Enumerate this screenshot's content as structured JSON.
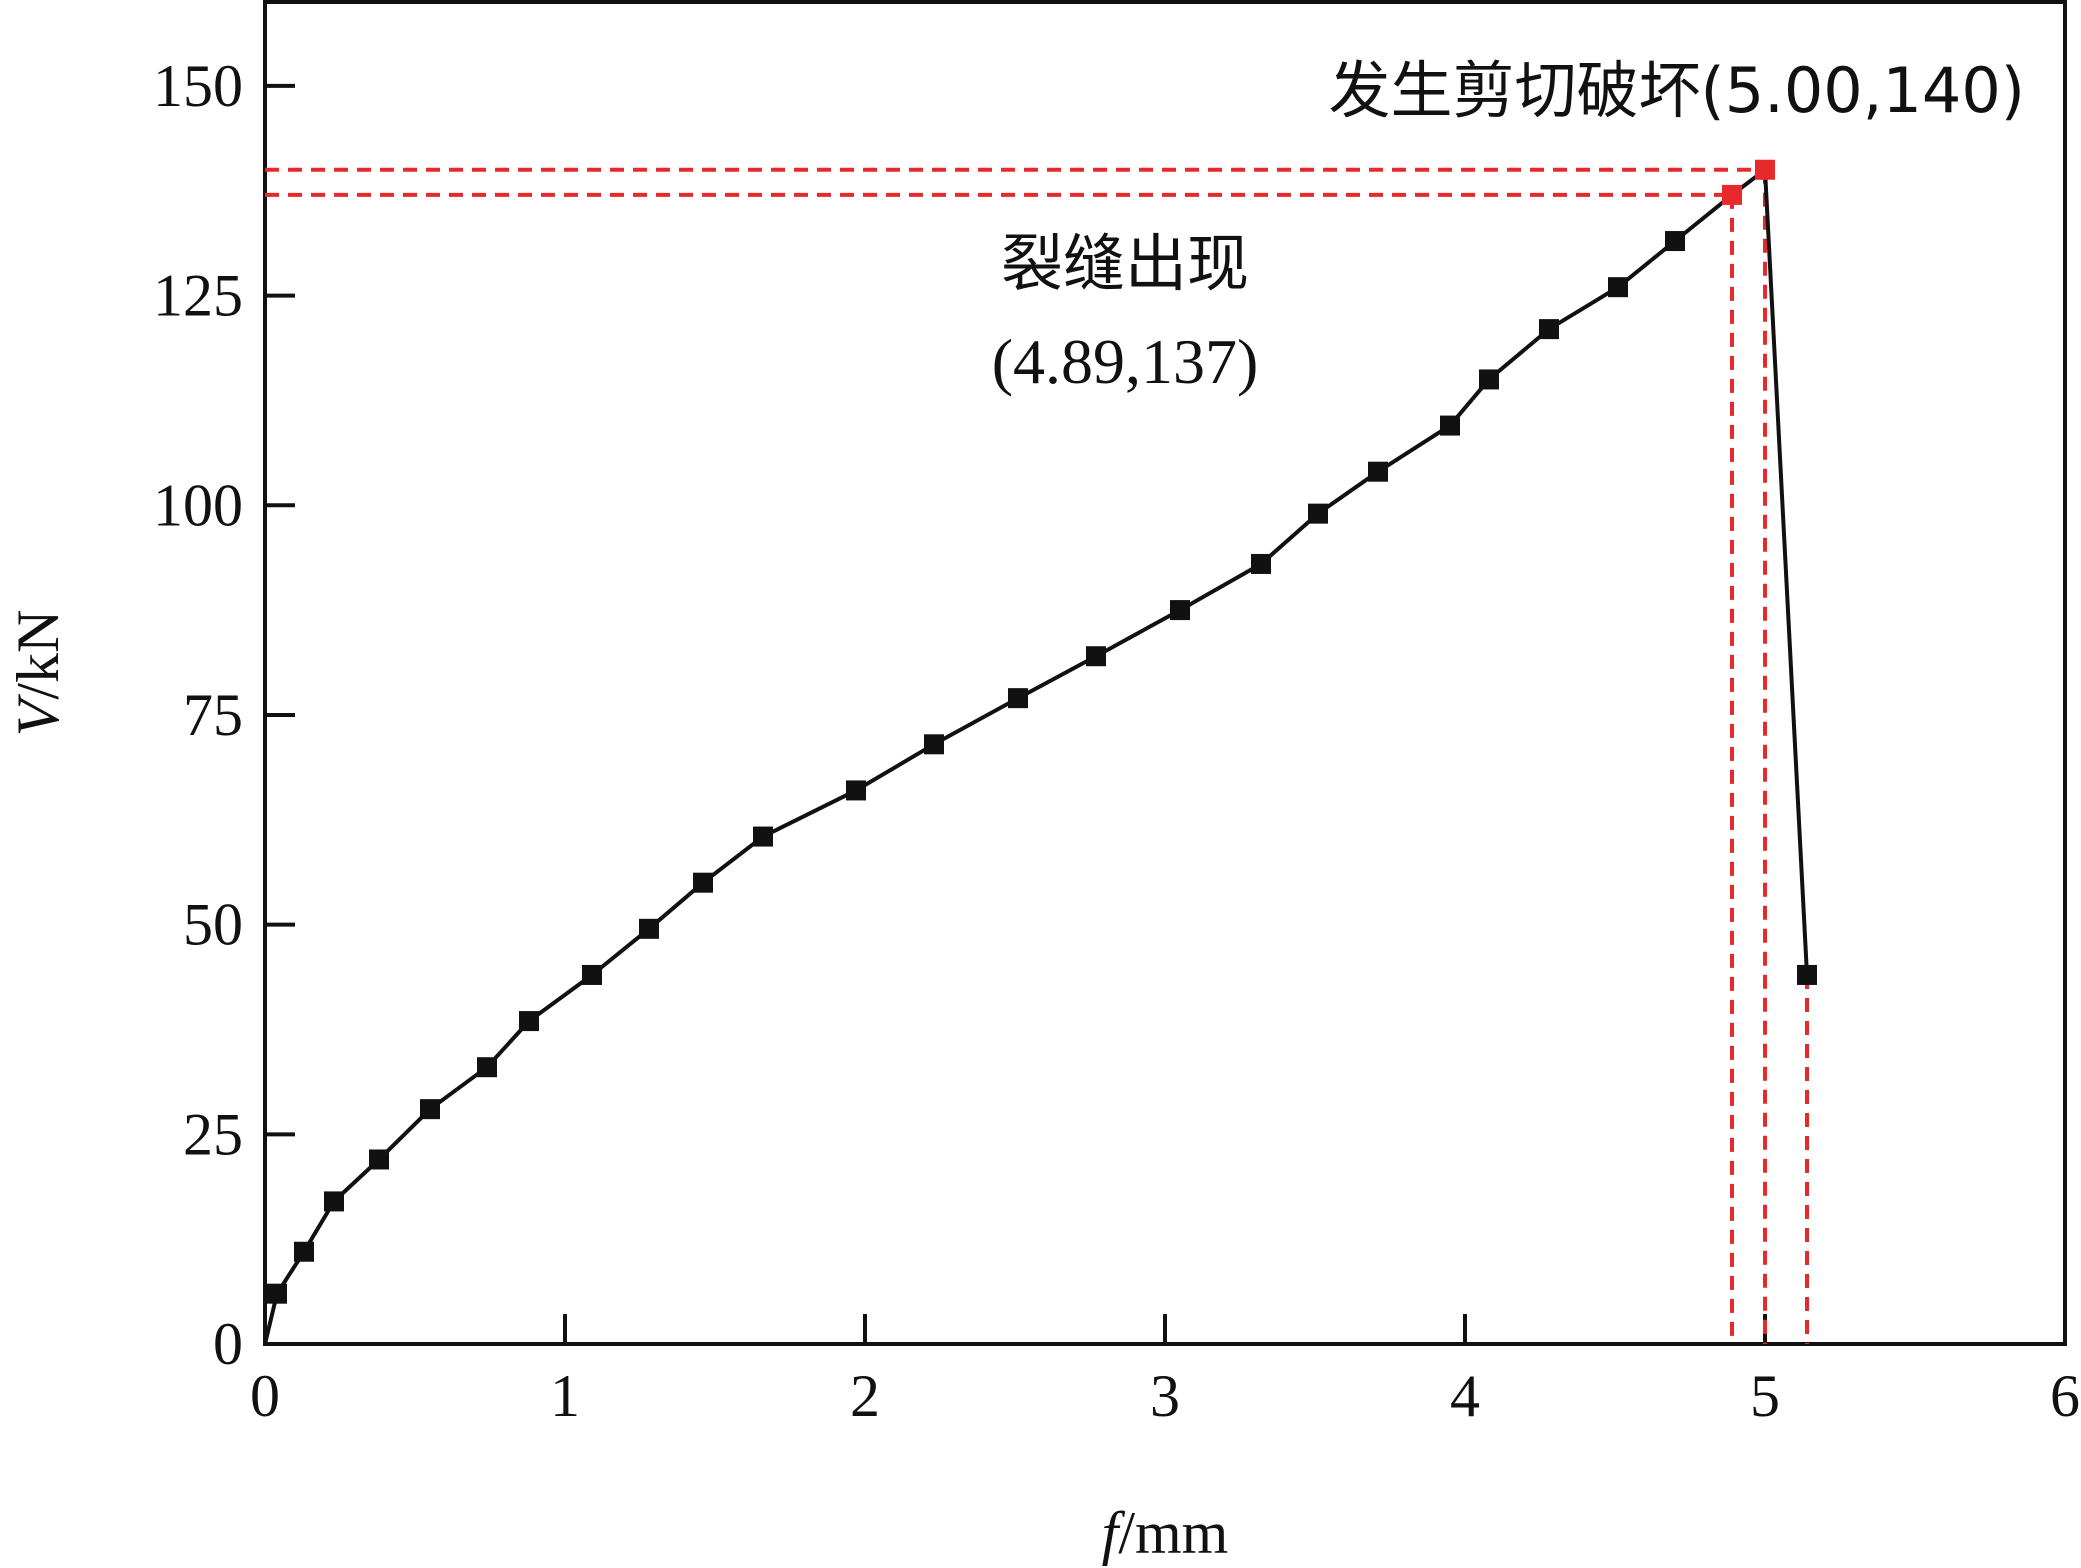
{
  "chart_data": {
    "type": "line",
    "title": "",
    "xlabel": {
      "var": "f",
      "unit": "/mm"
    },
    "ylabel": {
      "var": "V",
      "unit": "/kN"
    },
    "xlim": [
      0,
      6
    ],
    "ylim": [
      0,
      160
    ],
    "xticks": [
      0,
      1,
      2,
      3,
      4,
      5,
      6
    ],
    "yticks": [
      0,
      25,
      50,
      75,
      100,
      125,
      150
    ],
    "grid": false,
    "legend": "none",
    "line_color": "#111111",
    "marker_color": "#111111",
    "highlight_color": "#e8292b",
    "series": [
      {
        "points": [
          [
            0,
            0
          ],
          [
            0.04,
            6
          ],
          [
            0.13,
            11
          ],
          [
            0.23,
            17
          ],
          [
            0.38,
            22
          ],
          [
            0.55,
            28
          ],
          [
            0.74,
            33
          ],
          [
            0.88,
            38.5
          ],
          [
            1.09,
            44
          ],
          [
            1.28,
            49.5
          ],
          [
            1.46,
            55
          ],
          [
            1.66,
            60.5
          ],
          [
            1.97,
            66
          ],
          [
            2.23,
            71.5
          ],
          [
            2.51,
            77
          ],
          [
            2.77,
            82
          ],
          [
            3.05,
            87.5
          ],
          [
            3.32,
            93
          ],
          [
            3.51,
            99
          ],
          [
            3.71,
            104
          ],
          [
            3.95,
            109.5
          ],
          [
            4.08,
            115
          ],
          [
            4.28,
            121
          ],
          [
            4.51,
            126
          ],
          [
            4.7,
            131.5
          ],
          [
            4.89,
            137
          ],
          [
            5.0,
            140
          ],
          [
            5.14,
            44
          ]
        ]
      }
    ],
    "highlight_points": [
      {
        "x": 4.89,
        "y": 137
      },
      {
        "x": 5.0,
        "y": 140
      }
    ],
    "guide_lines": [
      {
        "x": 4.89,
        "y": 137
      },
      {
        "x": 5.0,
        "y": 140
      },
      {
        "x": 5.14,
        "y": 44
      }
    ],
    "annotations": [
      {
        "name": "crack-annotation",
        "lines": [
          "裂缝出现",
          "(4.89,137)"
        ]
      },
      {
        "name": "shear-failure-annotation",
        "lines": [
          "发生剪切破坏(5.00,140)"
        ]
      }
    ]
  }
}
